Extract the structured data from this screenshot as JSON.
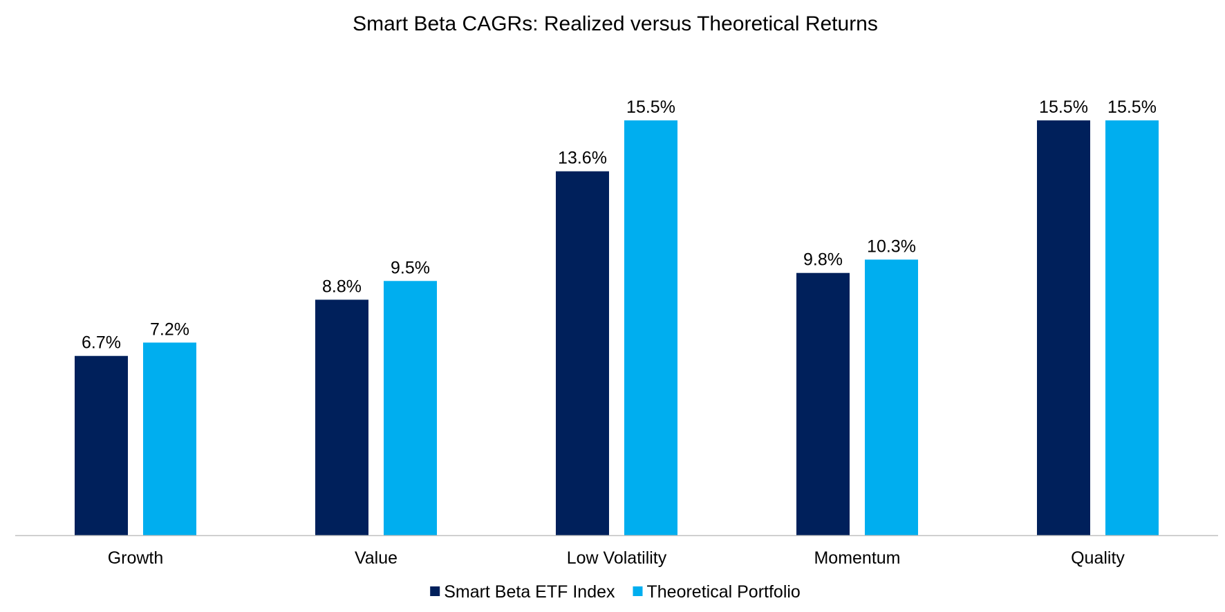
{
  "chart_data": {
    "type": "bar",
    "title": "Smart Beta CAGRs: Realized versus Theoretical Returns",
    "xlabel": "",
    "ylabel": "",
    "categories": [
      "Growth",
      "Value",
      "Low Volatility",
      "Momentum",
      "Quality"
    ],
    "series": [
      {
        "name": "Smart Beta ETF Index",
        "color": "#00205b",
        "values": [
          6.7,
          8.8,
          13.6,
          9.8,
          15.5
        ],
        "labels": [
          "6.7%",
          "8.8%",
          "13.6%",
          "9.8%",
          "15.5%"
        ]
      },
      {
        "name": "Theoretical Portfolio",
        "color": "#00aeef",
        "values": [
          7.2,
          9.5,
          15.5,
          10.3,
          15.5
        ],
        "labels": [
          "7.2%",
          "9.5%",
          "15.5%",
          "10.3%",
          "15.5%"
        ]
      }
    ],
    "ylim": [
      0,
      17
    ],
    "grid": false,
    "y_axis_visible": false,
    "data_labels": true,
    "legend_position": "bottom"
  }
}
